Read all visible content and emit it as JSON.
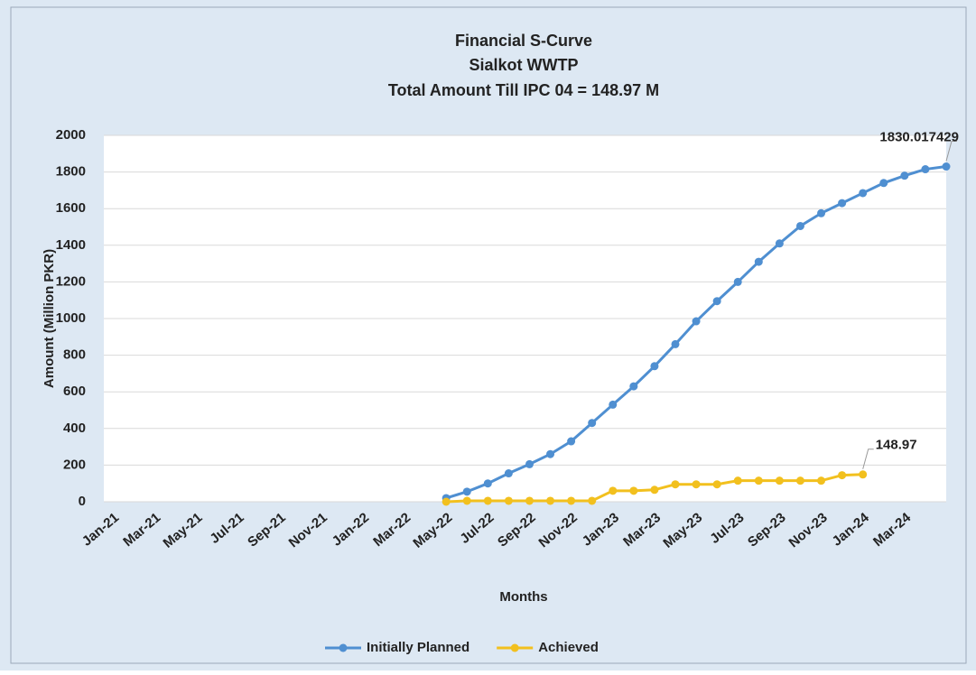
{
  "chart_data": {
    "type": "line",
    "title": "Financial S-Curve",
    "subtitle": [
      "Sialkot WWTP",
      "Total Amount Till IPC 04 = 148.97 M"
    ],
    "x_label": "Months",
    "y_label": "Amount (Million PKR)",
    "categories": [
      "Jan-21",
      null,
      "Mar-21",
      null,
      "May-21",
      null,
      "Jul-21",
      null,
      "Sep-21",
      null,
      "Nov-21",
      null,
      "Jan-22",
      null,
      "Mar-22",
      null,
      "May-22",
      null,
      "Jul-22",
      null,
      "Sep-22",
      null,
      "Nov-22",
      null,
      "Jan-23",
      null,
      "Mar-23",
      null,
      "May-23",
      null,
      "Jul-23",
      null,
      "Sep-23",
      null,
      "Nov-23",
      null,
      "Jan-24",
      null,
      "Mar-24",
      null
    ],
    "series": [
      {
        "name": "Initially Planned",
        "color": "#4f8fd1",
        "values": [
          null,
          null,
          null,
          null,
          null,
          null,
          null,
          null,
          null,
          null,
          null,
          null,
          null,
          null,
          null,
          20,
          55,
          100,
          155,
          205,
          260,
          330,
          430,
          530,
          630,
          740,
          860,
          985,
          1095,
          1200,
          1310,
          1410,
          1505,
          1575,
          1630,
          1685,
          1740,
          1780,
          1815,
          1830.017429
        ]
      },
      {
        "name": "Achieved",
        "color": "#f2c01e",
        "values": [
          null,
          null,
          null,
          null,
          null,
          null,
          null,
          null,
          null,
          null,
          null,
          null,
          null,
          null,
          null,
          0,
          5,
          5,
          5,
          5,
          5,
          5,
          5,
          60,
          60,
          65,
          95,
          95,
          95,
          115,
          115,
          115,
          115,
          115,
          145,
          148.97,
          null,
          null,
          null,
          null
        ]
      }
    ],
    "data_labels": "last",
    "ylim": [
      0,
      2000
    ],
    "yticks": [
      0,
      200,
      400,
      600,
      800,
      1000,
      1200,
      1400,
      1600,
      1800,
      2000
    ],
    "grid": true,
    "legend": "bottom"
  }
}
